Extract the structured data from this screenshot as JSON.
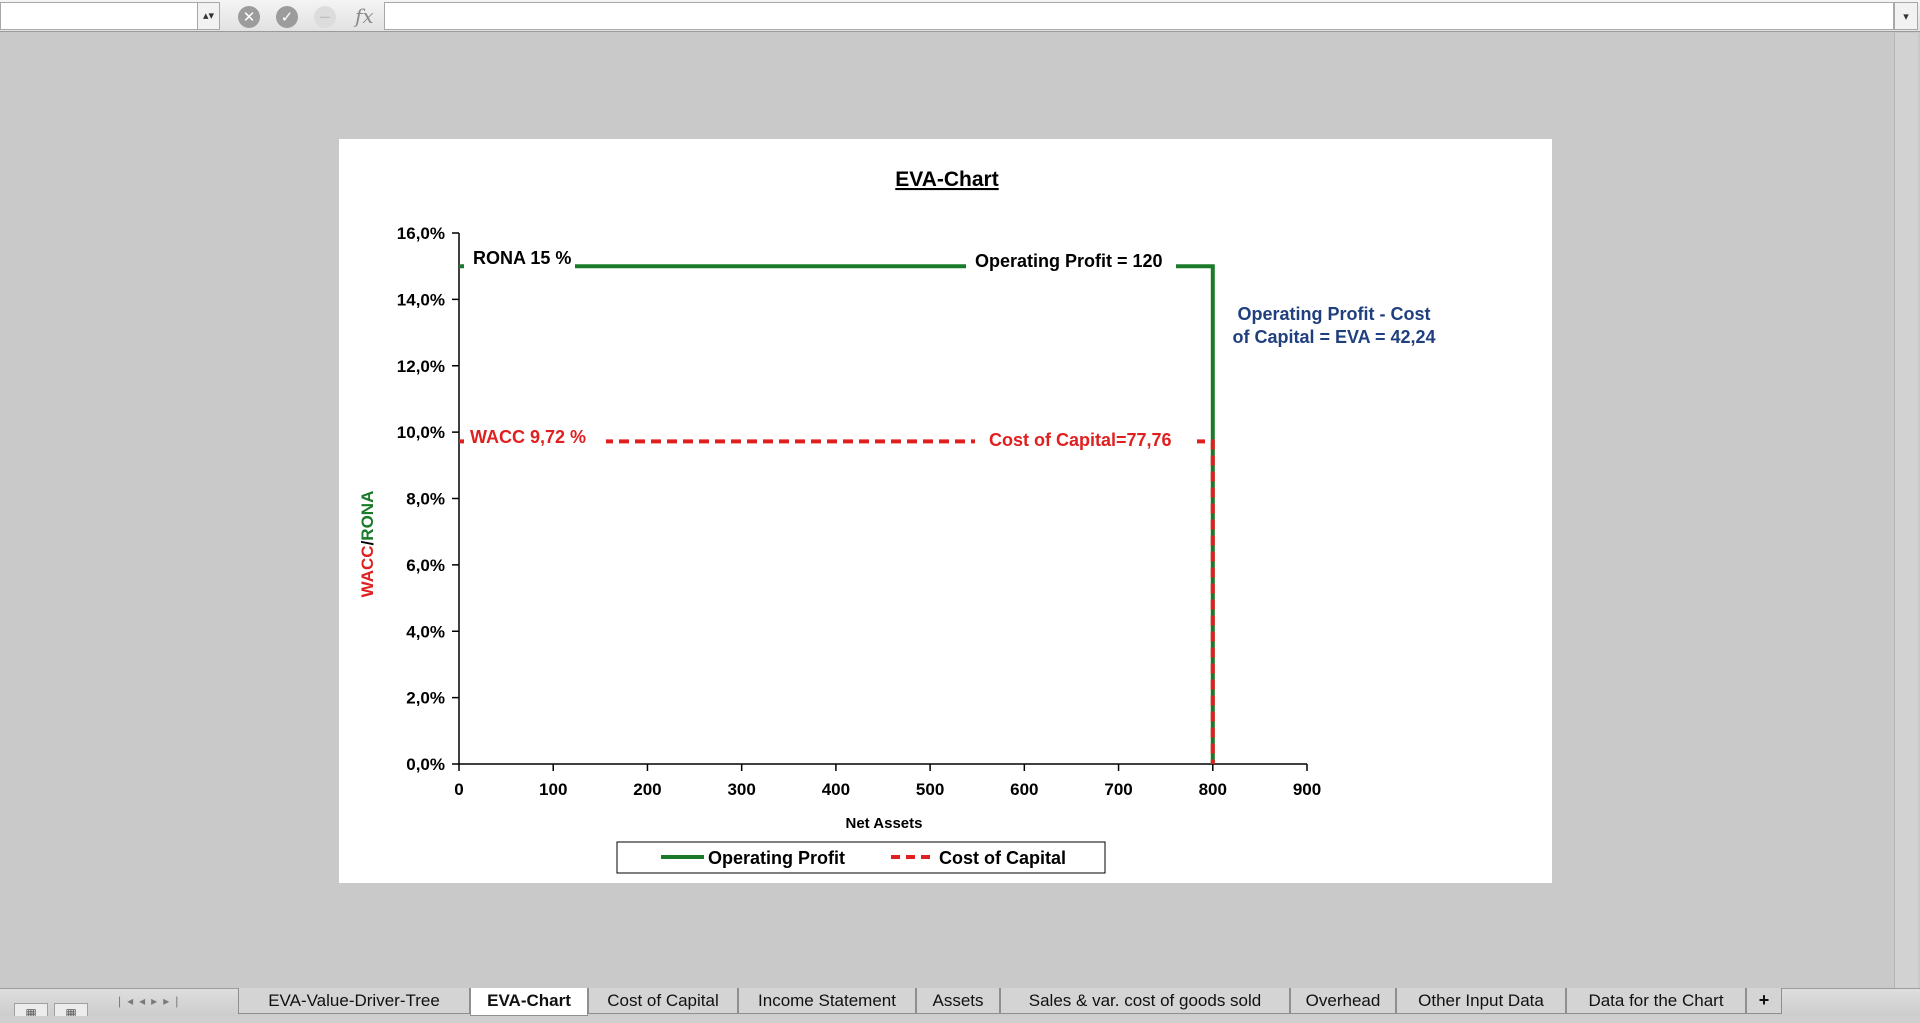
{
  "formula_bar": {
    "name_box_value": "",
    "formula_value": "",
    "fx_label": "fx",
    "cancel_icon": "x-circle-icon",
    "confirm_icon": "check-circle-icon",
    "function_icon": "minus-circle-icon"
  },
  "chart_data": {
    "type": "line",
    "title": "EVA-Chart",
    "xlabel": "Net Assets",
    "ylabel_parts": [
      "WACC",
      "/",
      "RONA"
    ],
    "xlim": [
      0,
      900
    ],
    "ylim": [
      0,
      0.16
    ],
    "x_ticks": [
      "0",
      "100",
      "200",
      "300",
      "400",
      "500",
      "600",
      "700",
      "800",
      "900"
    ],
    "y_ticks": [
      "0,0%",
      "2,0%",
      "4,0%",
      "6,0%",
      "8,0%",
      "10,0%",
      "12,0%",
      "14,0%",
      "16,0%"
    ],
    "grid": false,
    "legend_position": "bottom",
    "series": [
      {
        "name": "Operating Profit",
        "color": "#1a7a2a",
        "style": "solid",
        "points": [
          [
            0,
            0.15
          ],
          [
            800,
            0.15
          ],
          [
            800,
            0
          ]
        ]
      },
      {
        "name": "Cost of Capital",
        "color": "#e02020",
        "style": "dashed",
        "points": [
          [
            0,
            0.0972
          ],
          [
            800,
            0.0972
          ],
          [
            800,
            0
          ]
        ]
      }
    ],
    "annotations": {
      "rona": "RONA 15 %",
      "operating_profit": "Operating Profit = 120",
      "eva_line1": "Operating Profit - Cost",
      "eva_line2": "of Capital = EVA = 42,24",
      "wacc": "WACC 9,72 %",
      "cost_of_capital": "Cost of Capital=77,76"
    },
    "colors": {
      "profit": "#1a7a2a",
      "capital": "#e02020",
      "eva": "#1f3f7f"
    }
  },
  "sheet_tabs": [
    {
      "label": "EVA-Value-Driver-Tree",
      "active": false
    },
    {
      "label": "EVA-Chart",
      "active": true
    },
    {
      "label": "Cost of Capital",
      "active": false
    },
    {
      "label": "Income Statement",
      "active": false
    },
    {
      "label": "Assets",
      "active": false
    },
    {
      "label": "Sales & var. cost of goods sold",
      "active": false
    },
    {
      "label": "Overhead",
      "active": false
    },
    {
      "label": "Other Input Data",
      "active": false
    },
    {
      "label": "Data for the Chart",
      "active": false
    }
  ],
  "add_tab_label": "+",
  "nav_icons": [
    "first-sheet-icon",
    "prev-sheet-icon",
    "next-sheet-icon",
    "last-sheet-icon"
  ],
  "view_icons": [
    "normal-view-icon",
    "page-layout-view-icon"
  ]
}
